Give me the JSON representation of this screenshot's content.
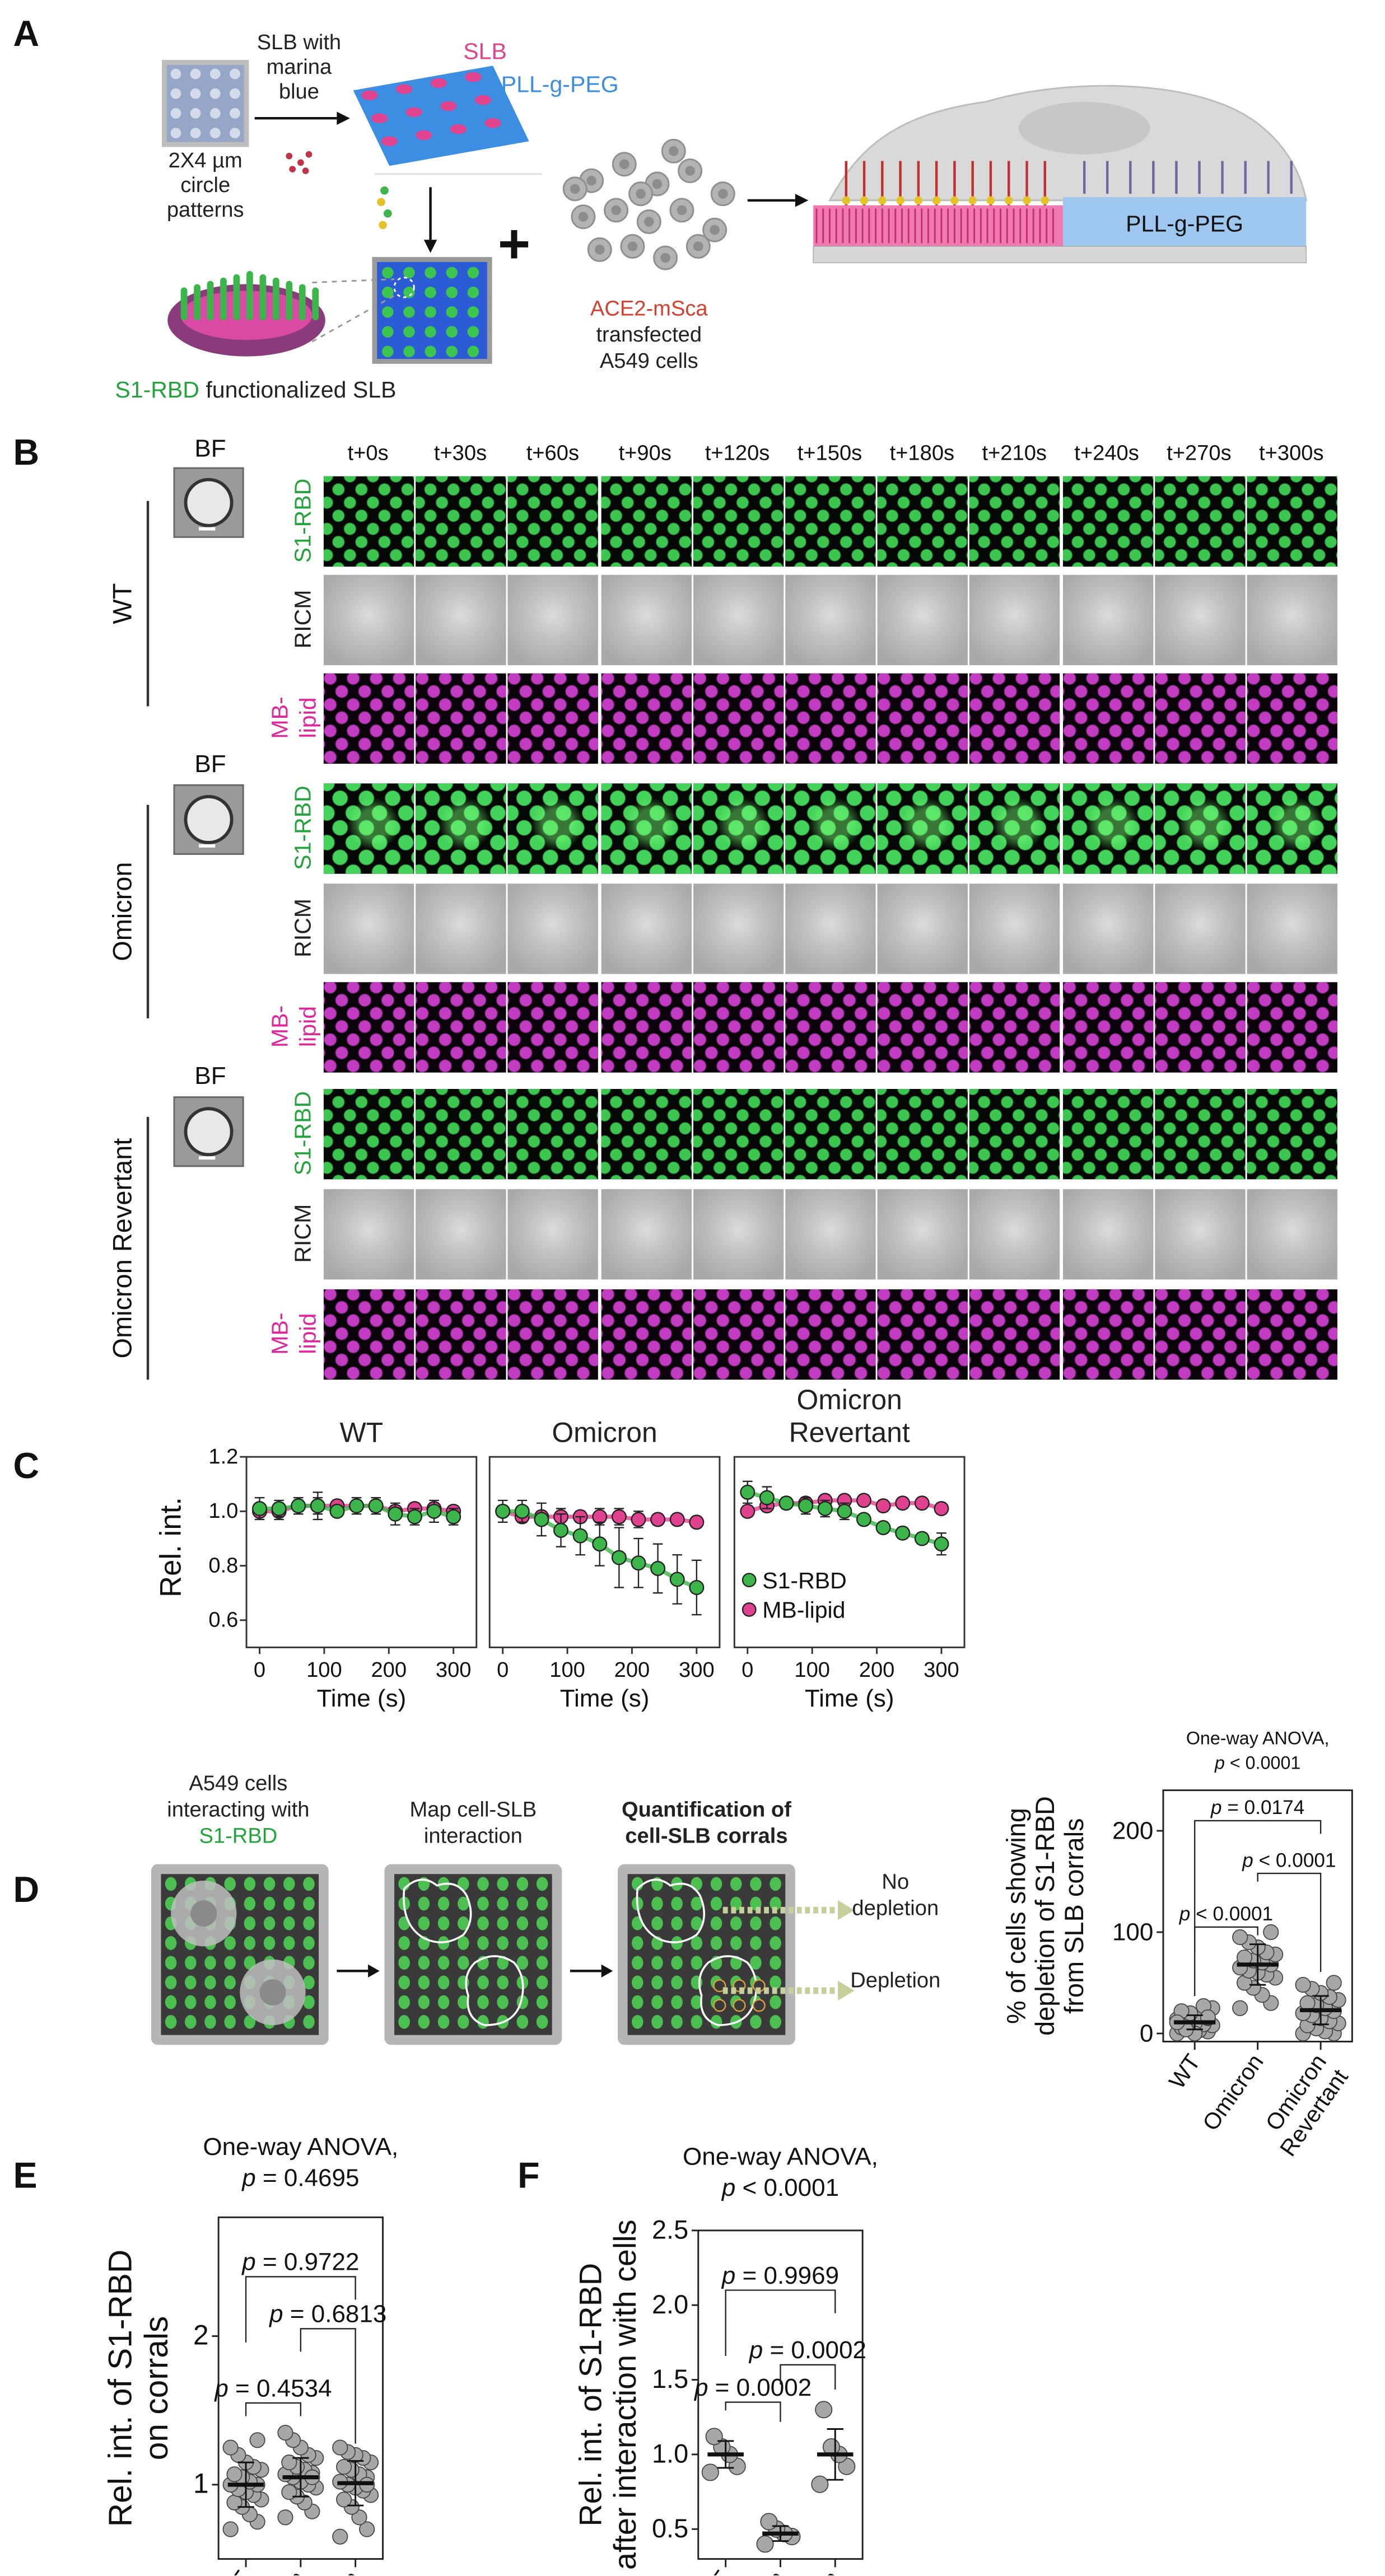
{
  "panel_labels": {
    "a": "A",
    "b": "B",
    "c": "C",
    "d": "D",
    "e": "E",
    "f": "F"
  },
  "panel_a": {
    "slb_with": [
      "SLB with",
      "marina",
      "blue"
    ],
    "pattern": [
      "2X4 µm",
      "circle",
      "patterns"
    ],
    "slb": "SLB",
    "pll": "PLL-g-PEG",
    "functionalized": {
      "s1": "S1-RBD",
      "rest": " functionalized SLB"
    },
    "plus": "+",
    "cells": [
      "ACE2-mSca",
      "transfected",
      "A549 cells"
    ],
    "pll_right": "PLL-g-PEG"
  },
  "panel_b": {
    "timepoints": [
      "t+0s",
      "t+30s",
      "t+60s",
      "t+90s",
      "t+120s",
      "t+150s",
      "t+180s",
      "t+210s",
      "t+240s",
      "t+270s",
      "t+300s"
    ],
    "bf_label": "BF",
    "groups": [
      "WT",
      "Omicron",
      "Omicron Revertant"
    ],
    "channels": [
      {
        "label": "S1-RBD",
        "color": "#23a33b"
      },
      {
        "label": "RICM",
        "color": "#222222"
      },
      {
        "label": "MB-",
        "label2": "lipid",
        "color": "#e0269b"
      }
    ]
  },
  "panel_d": {
    "step1": [
      "A549 cells",
      "interacting with",
      "S1-RBD"
    ],
    "step2": [
      "Map cell-SLB",
      "interaction"
    ],
    "step3": [
      "Quantification of",
      "cell-SLB corrals"
    ],
    "no_depletion": [
      "No",
      "depletion"
    ],
    "depletion": "Depletion"
  },
  "colors": {
    "green": "#3cb54a",
    "magenta": "#e0428f",
    "point_gray": "#a7a7a7"
  },
  "chart_data": [
    {
      "id": "C",
      "type": "line",
      "ylabel": "Rel. int.",
      "xlabel": "Time (s)",
      "ylim": [
        0.5,
        1.2
      ],
      "yticks": [
        "0.6",
        "0.8",
        "1.0",
        "1.2"
      ],
      "xlim": [
        0,
        300
      ],
      "xticks": [
        "0",
        "100",
        "200",
        "300"
      ],
      "x": [
        0,
        30,
        60,
        90,
        120,
        150,
        180,
        210,
        240,
        270,
        300
      ],
      "legend": [
        "S1-RBD",
        "MB-lipid"
      ],
      "legend_position": "bottom-right of third panel",
      "panels": [
        {
          "title": [
            "WT"
          ],
          "series": [
            {
              "name": "S1-RBD",
              "values": [
                1.01,
                1.01,
                1.02,
                1.02,
                1.0,
                1.02,
                1.02,
                0.99,
                0.98,
                1.0,
                0.98
              ],
              "err": [
                0.04,
                0.03,
                0.03,
                0.05,
                0.02,
                0.03,
                0.03,
                0.04,
                0.03,
                0.04,
                0.03
              ]
            },
            {
              "name": "MB-lipid",
              "values": [
                1.0,
                1.0,
                1.02,
                1.02,
                1.02,
                1.02,
                1.02,
                1.0,
                1.01,
                1.01,
                1.0
              ],
              "err": [
                0.02,
                0.03,
                0.02,
                0.03,
                0.02,
                0.02,
                0.02,
                0.02,
                0.02,
                0.02,
                0.02
              ]
            }
          ]
        },
        {
          "title": [
            "Omicron"
          ],
          "series": [
            {
              "name": "S1-RBD",
              "values": [
                1.0,
                1.0,
                0.97,
                0.93,
                0.91,
                0.88,
                0.83,
                0.81,
                0.79,
                0.75,
                0.72
              ],
              "err": [
                0.04,
                0.04,
                0.06,
                0.06,
                0.07,
                0.08,
                0.11,
                0.09,
                0.09,
                0.09,
                0.1
              ]
            },
            {
              "name": "MB-lipid",
              "values": [
                1.0,
                0.98,
                0.98,
                0.98,
                0.98,
                0.98,
                0.98,
                0.97,
                0.97,
                0.97,
                0.96
              ],
              "err": [
                0.02,
                0.02,
                0.02,
                0.03,
                0.02,
                0.03,
                0.03,
                0.03,
                0.02,
                0.02,
                0.02
              ]
            }
          ]
        },
        {
          "title": [
            "Omicron",
            "Revertant"
          ],
          "series": [
            {
              "name": "S1-RBD",
              "values": [
                1.07,
                1.05,
                1.03,
                1.02,
                1.01,
                1.0,
                0.97,
                0.94,
                0.92,
                0.9,
                0.88
              ],
              "err": [
                0.04,
                0.04,
                0.02,
                0.03,
                0.03,
                0.03,
                0.02,
                0.02,
                0.02,
                0.02,
                0.04
              ]
            },
            {
              "name": "MB-lipid",
              "values": [
                1.0,
                1.02,
                1.03,
                1.03,
                1.04,
                1.04,
                1.04,
                1.02,
                1.03,
                1.03,
                1.01
              ],
              "err": [
                0.02,
                0.02,
                0.02,
                0.02,
                0.02,
                0.02,
                0.02,
                0.02,
                0.02,
                0.02,
                0.02
              ]
            }
          ]
        }
      ]
    },
    {
      "id": "D",
      "type": "scatter",
      "title": [
        "One-way ANOVA,",
        "p < 0.0001"
      ],
      "ylabel": [
        "% of cells showing",
        "depletion of S1-RBD",
        "from SLB corrals"
      ],
      "categories": [
        "WT",
        "Omicron",
        [
          "Omicron",
          "Revertant"
        ]
      ],
      "ylim": [
        -8,
        240
      ],
      "yticks": [
        "0",
        "100",
        "200"
      ],
      "values": [
        [
          0,
          2,
          3,
          5,
          6,
          8,
          9,
          10,
          12,
          14,
          15,
          18,
          20,
          22,
          25,
          27,
          0,
          4,
          11,
          16
        ],
        [
          25,
          30,
          38,
          45,
          50,
          55,
          58,
          60,
          62,
          65,
          68,
          70,
          72,
          75,
          78,
          80,
          85,
          90,
          95,
          100
        ],
        [
          0,
          0,
          2,
          5,
          8,
          10,
          12,
          15,
          18,
          20,
          22,
          25,
          28,
          30,
          33,
          36,
          40,
          44,
          48,
          50
        ]
      ],
      "mean": [
        11,
        68,
        23
      ],
      "sd": [
        7,
        20,
        14
      ],
      "comparisons": [
        {
          "pair": [
            0,
            1
          ],
          "label": "p < 0.0001"
        },
        {
          "pair": [
            1,
            2
          ],
          "label": "p < 0.0001"
        },
        {
          "pair": [
            0,
            2
          ],
          "label": "p = 0.0174"
        }
      ]
    },
    {
      "id": "E",
      "type": "scatter",
      "title": [
        "One-way ANOVA,",
        "p = 0.4695"
      ],
      "ylabel": [
        "Rel. int. of S1-RBD",
        "on corrals"
      ],
      "categories": [
        "WT",
        "Omicron",
        [
          "Omicron",
          "Revertant"
        ]
      ],
      "ylim": [
        0.5,
        2.8
      ],
      "yticks": [
        "1",
        "2"
      ],
      "values": [
        [
          0.7,
          0.75,
          0.8,
          0.85,
          0.88,
          0.9,
          0.93,
          0.95,
          0.97,
          1.0,
          1.0,
          1.02,
          1.05,
          1.07,
          1.1,
          1.12,
          1.15,
          1.2,
          1.25,
          1.3
        ],
        [
          0.78,
          0.82,
          0.88,
          0.92,
          0.95,
          0.98,
          1.0,
          1.02,
          1.05,
          1.07,
          1.08,
          1.1,
          1.12,
          1.15,
          1.18,
          1.2,
          1.25,
          1.3,
          1.35,
          1.05
        ],
        [
          0.65,
          0.7,
          0.78,
          0.85,
          0.9,
          0.93,
          0.96,
          0.98,
          1.0,
          1.02,
          1.05,
          1.07,
          1.1,
          1.12,
          1.15,
          1.18,
          1.2,
          1.22,
          1.25,
          1.0
        ]
      ],
      "mean": [
        1.0,
        1.05,
        1.01
      ],
      "sd": [
        0.15,
        0.13,
        0.15
      ],
      "comparisons": [
        {
          "pair": [
            0,
            1
          ],
          "label": "p = 0.4534"
        },
        {
          "pair": [
            1,
            2
          ],
          "label": "p = 0.6813"
        },
        {
          "pair": [
            0,
            2
          ],
          "label": "p = 0.9722"
        }
      ]
    },
    {
      "id": "F",
      "type": "scatter",
      "title": [
        "One-way ANOVA,",
        "p < 0.0001"
      ],
      "ylabel": [
        "Rel. int. of S1-RBD",
        "after interaction with cells"
      ],
      "categories": [
        "WT",
        "Omicron",
        [
          "Omicron",
          "Revertant"
        ]
      ],
      "ylim": [
        0.3,
        2.5
      ],
      "yticks": [
        "0.5",
        "1.0",
        "1.5",
        "2.0",
        "2.5"
      ],
      "values": [
        [
          0.88,
          0.92,
          1.0,
          1.05,
          1.12
        ],
        [
          0.4,
          0.45,
          0.47,
          0.5,
          0.55
        ],
        [
          0.8,
          0.92,
          1.0,
          1.05,
          1.3
        ]
      ],
      "mean": [
        1.0,
        0.47,
        1.0
      ],
      "sd": [
        0.09,
        0.05,
        0.17
      ],
      "comparisons": [
        {
          "pair": [
            0,
            1
          ],
          "label": "p = 0.0002"
        },
        {
          "pair": [
            1,
            2
          ],
          "label": "p = 0.0002"
        },
        {
          "pair": [
            0,
            2
          ],
          "label": "p = 0.9969"
        }
      ]
    }
  ]
}
